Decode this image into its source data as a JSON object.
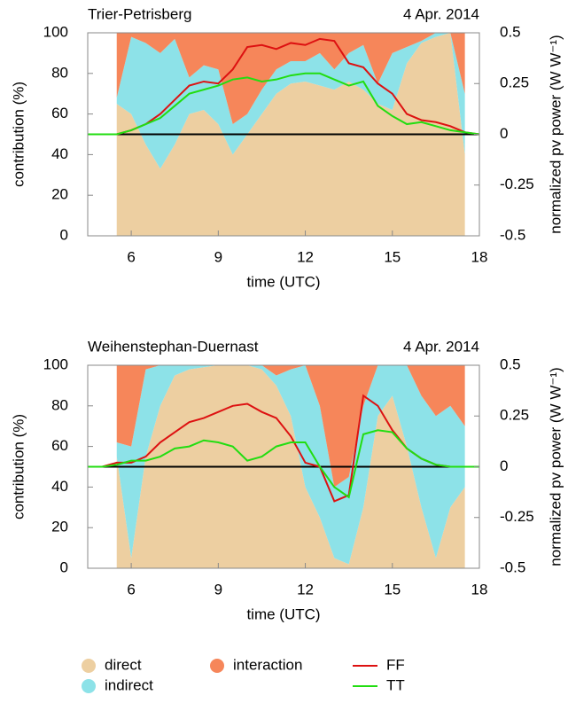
{
  "chart_data": [
    {
      "type": "area",
      "stacked": true,
      "title": "Trier-Petrisberg",
      "subtitle": "4 Apr. 2014",
      "x_label": "time (UTC)",
      "y_label": "contribution (%)",
      "y2_label": "normalized pv power (W W⁻¹)",
      "x": [
        4.5,
        5,
        5.5,
        6,
        6.5,
        7,
        7.5,
        8,
        8.5,
        9,
        9.5,
        10,
        10.5,
        11,
        11.5,
        12,
        12.5,
        13,
        13.5,
        14,
        14.5,
        15,
        15.5,
        16,
        16.5,
        17,
        17.5,
        18
      ],
      "xlim": [
        4.5,
        18
      ],
      "xticks": [
        6,
        9,
        12,
        15,
        18
      ],
      "ylim": [
        0,
        100
      ],
      "yticks": [
        0,
        20,
        40,
        60,
        80,
        100
      ],
      "y2lim": [
        -0.5,
        0.5
      ],
      "y2ticks": [
        -0.5,
        -0.25,
        0,
        0.25,
        0.5
      ],
      "series": [
        {
          "name": "direct",
          "color": "#edcfa1",
          "values": [
            null,
            null,
            65,
            60,
            45,
            33,
            45,
            60,
            62,
            55,
            40,
            50,
            60,
            70,
            75,
            76,
            74,
            72,
            76,
            72,
            65,
            62,
            85,
            95,
            98,
            100,
            40,
            null
          ]
        },
        {
          "name": "indirect",
          "color": "#8de2e8",
          "values": [
            null,
            null,
            3,
            38,
            50,
            57,
            52,
            18,
            22,
            27,
            15,
            10,
            12,
            12,
            11,
            10,
            16,
            10,
            14,
            22,
            10,
            28,
            8,
            1,
            2,
            0,
            30,
            null
          ]
        },
        {
          "name": "interaction",
          "color": "#f6865a",
          "values": [
            null,
            null,
            32,
            2,
            5,
            10,
            3,
            22,
            16,
            18,
            45,
            40,
            28,
            18,
            14,
            14,
            10,
            18,
            10,
            6,
            25,
            10,
            7,
            4,
            0,
            0,
            30,
            null
          ]
        },
        {
          "name": "FF",
          "color": "#dd1111",
          "axis": "y2",
          "values": [
            0,
            0,
            0,
            0.02,
            0.05,
            0.1,
            0.17,
            0.24,
            0.26,
            0.25,
            0.32,
            0.43,
            0.44,
            0.42,
            0.45,
            0.44,
            0.47,
            0.46,
            0.35,
            0.33,
            0.25,
            0.2,
            0.1,
            0.07,
            0.06,
            0.04,
            0.01,
            0
          ]
        },
        {
          "name": "TT",
          "color": "#22dd11",
          "axis": "y2",
          "values": [
            0,
            0,
            0,
            0.02,
            0.05,
            0.08,
            0.14,
            0.2,
            0.22,
            0.24,
            0.27,
            0.28,
            0.26,
            0.27,
            0.29,
            0.3,
            0.3,
            0.27,
            0.24,
            0.26,
            0.14,
            0.09,
            0.05,
            0.06,
            0.04,
            0.02,
            0.01,
            0
          ]
        }
      ]
    },
    {
      "type": "area",
      "stacked": true,
      "title": "Weihenstephan-Duernast",
      "subtitle": "4 Apr. 2014",
      "x_label": "time (UTC)",
      "y_label": "contribution (%)",
      "y2_label": "normalized pv power (W W⁻¹)",
      "x": [
        4.5,
        5,
        5.5,
        6,
        6.5,
        7,
        7.5,
        8,
        8.5,
        9,
        9.5,
        10,
        10.5,
        11,
        11.5,
        12,
        12.5,
        13,
        13.5,
        14,
        14.5,
        15,
        15.5,
        16,
        16.5,
        17,
        17.5,
        18
      ],
      "xlim": [
        4.5,
        18
      ],
      "xticks": [
        6,
        9,
        12,
        15,
        18
      ],
      "ylim": [
        0,
        100
      ],
      "yticks": [
        0,
        20,
        40,
        60,
        80,
        100
      ],
      "y2lim": [
        -0.5,
        0.5
      ],
      "y2ticks": [
        -0.5,
        -0.25,
        0,
        0.25,
        0.5
      ],
      "series": [
        {
          "name": "direct",
          "color": "#edcfa1",
          "values": [
            null,
            null,
            55,
            5,
            55,
            80,
            95,
            98,
            99,
            100,
            100,
            100,
            98,
            90,
            75,
            40,
            25,
            5,
            2,
            30,
            75,
            85,
            60,
            30,
            5,
            30,
            40,
            null
          ]
        },
        {
          "name": "indirect",
          "color": "#8de2e8",
          "values": [
            null,
            null,
            7,
            55,
            43,
            20,
            5,
            2,
            1,
            0,
            0,
            0,
            2,
            5,
            23,
            60,
            55,
            35,
            43,
            50,
            25,
            15,
            40,
            55,
            70,
            50,
            30,
            null
          ]
        },
        {
          "name": "interaction",
          "color": "#f6865a",
          "values": [
            null,
            null,
            38,
            40,
            2,
            0,
            0,
            0,
            0,
            0,
            0,
            0,
            0,
            5,
            2,
            0,
            20,
            60,
            55,
            20,
            0,
            0,
            0,
            15,
            25,
            20,
            30,
            null
          ]
        },
        {
          "name": "FF",
          "color": "#dd1111",
          "axis": "y2",
          "values": [
            0,
            0,
            0.02,
            0.02,
            0.05,
            0.12,
            0.17,
            0.22,
            0.24,
            0.27,
            0.3,
            0.31,
            0.27,
            0.24,
            0.15,
            0.02,
            0,
            -0.17,
            -0.14,
            0.35,
            0.3,
            0.18,
            0.09,
            0.04,
            0.01,
            0,
            0,
            0
          ]
        },
        {
          "name": "TT",
          "color": "#22dd11",
          "axis": "y2",
          "values": [
            0,
            0,
            0.01,
            0.03,
            0.03,
            0.05,
            0.09,
            0.1,
            0.13,
            0.12,
            0.1,
            0.03,
            0.05,
            0.1,
            0.12,
            0.12,
            0,
            -0.1,
            -0.15,
            0.16,
            0.18,
            0.17,
            0.09,
            0.04,
            0.01,
            0,
            0,
            0
          ]
        }
      ]
    }
  ]
}
